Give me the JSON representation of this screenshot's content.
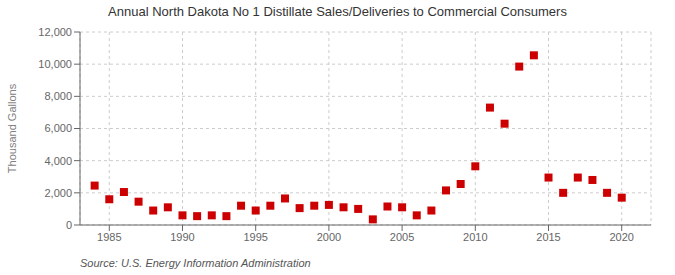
{
  "chart_data": {
    "type": "scatter",
    "title": "Annual North Dakota No 1 Distillate Sales/Deliveries to Commercial Consumers",
    "ylabel": "Thousand Gallons",
    "source": "Source: U.S. Energy Information Administration",
    "color": "#cc0000",
    "marker": "square",
    "x": [
      1984,
      1985,
      1986,
      1987,
      1988,
      1989,
      1990,
      1991,
      1992,
      1993,
      1994,
      1995,
      1996,
      1997,
      1998,
      1999,
      2000,
      2001,
      2002,
      2003,
      2004,
      2005,
      2006,
      2007,
      2008,
      2009,
      2010,
      2011,
      2012,
      2013,
      2014,
      2015,
      2016,
      2017,
      2018,
      2019,
      2020
    ],
    "values": [
      2450,
      1600,
      2050,
      1450,
      900,
      1100,
      600,
      550,
      600,
      550,
      1200,
      900,
      1200,
      1650,
      1050,
      1200,
      1250,
      1100,
      1000,
      350,
      1150,
      1100,
      600,
      900,
      2150,
      2550,
      3650,
      7300,
      6300,
      9850,
      10550,
      2950,
      2000,
      2950,
      2800,
      2000,
      1700
    ],
    "xlim": [
      1983,
      2022
    ],
    "ylim": [
      0,
      12000
    ],
    "xticks": [
      1985,
      1990,
      1995,
      2000,
      2005,
      2010,
      2015,
      2020
    ],
    "yticks": [
      0,
      {
        "value": 2000,
        "label": "2,000"
      },
      {
        "value": 4000,
        "label": "4,000"
      },
      {
        "value": 6000,
        "label": "6,000"
      },
      {
        "value": 8000,
        "label": "8,000"
      },
      {
        "value": 10000,
        "label": "10,000"
      },
      {
        "value": 12000,
        "label": "12,000"
      }
    ],
    "grid": true
  }
}
